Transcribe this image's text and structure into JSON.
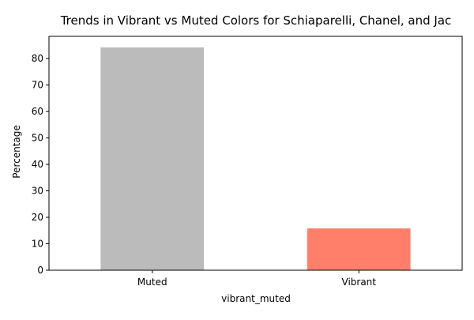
{
  "chart_data": {
    "type": "bar",
    "title": "Trends in Vibrant vs Muted Colors for Schiaparelli, Chanel, and Jac",
    "xlabel": "vibrant_muted",
    "ylabel": "Percentage",
    "categories": [
      "Muted",
      "Vibrant"
    ],
    "values": [
      84.2,
      15.8
    ],
    "colors": [
      "#bbbbbb",
      "#ff7f6b"
    ],
    "ylim": [
      0,
      88.4
    ],
    "yticks": [
      0,
      10,
      20,
      30,
      40,
      50,
      60,
      70,
      80
    ],
    "grid": false,
    "legend": "none"
  }
}
